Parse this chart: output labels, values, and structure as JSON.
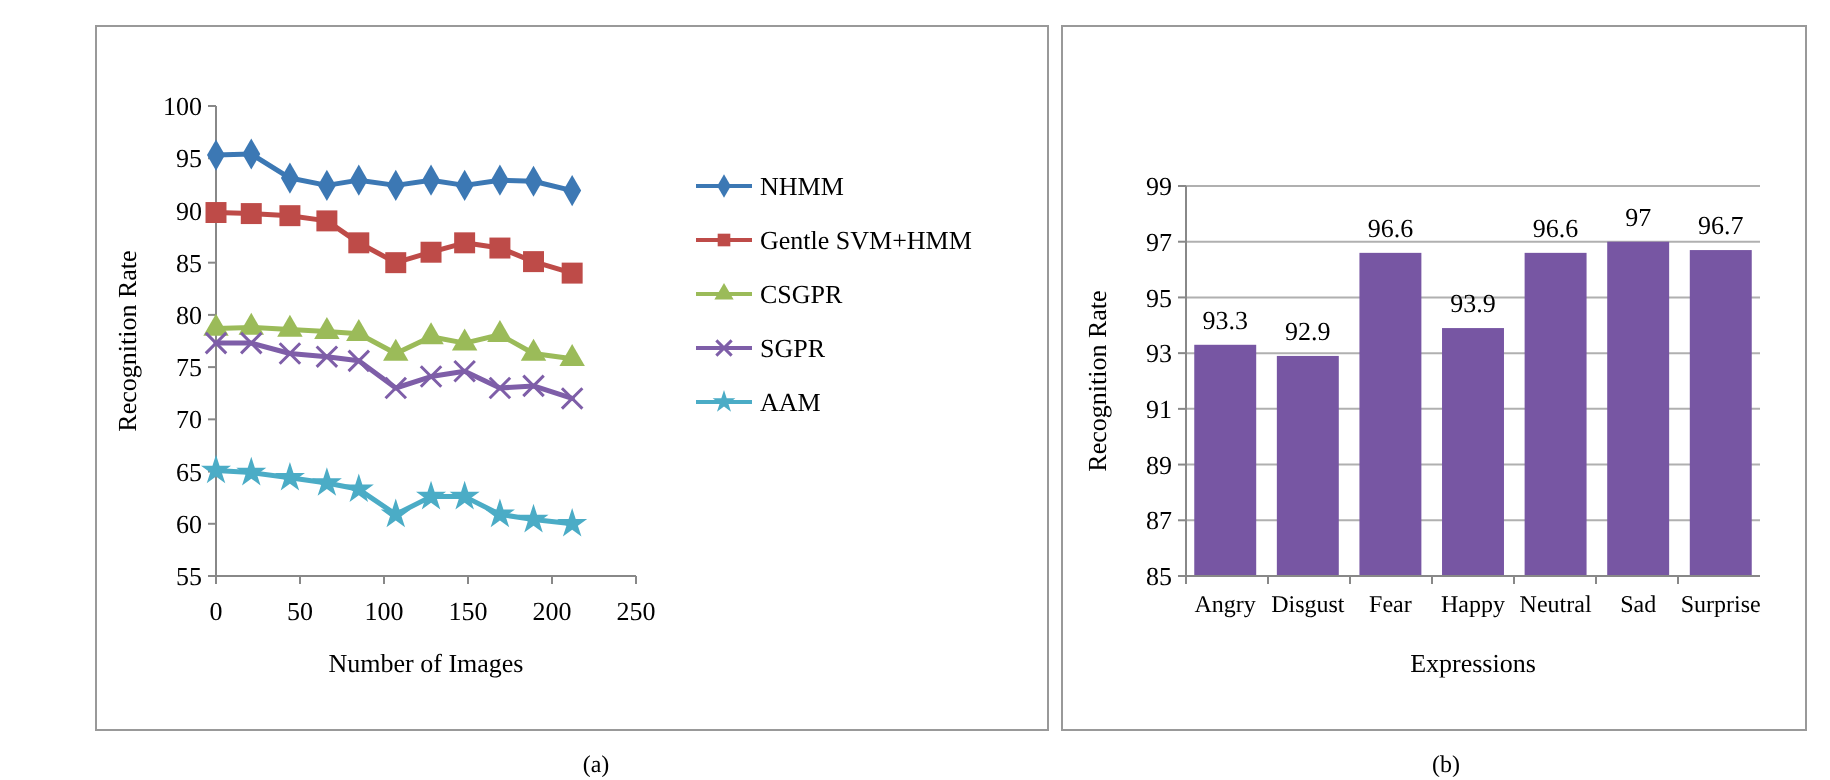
{
  "chart_data": [
    {
      "type": "line",
      "xlabel": "Number of Images",
      "ylabel": "Recognition Rate",
      "xlim": [
        0,
        250
      ],
      "xticks": [
        0,
        50,
        100,
        150,
        200,
        250
      ],
      "ylim": [
        55,
        100
      ],
      "yticks": [
        55,
        60,
        65,
        70,
        75,
        80,
        85,
        90,
        95,
        100
      ],
      "grid": false,
      "legend": "right",
      "line_style": "solid",
      "annotations": [
        "(a)"
      ],
      "x": [
        0,
        21,
        44,
        66,
        85,
        107,
        128,
        148,
        169,
        189,
        212
      ],
      "series": [
        {
          "name": "NHMM",
          "color": "#3c78b4",
          "marker": "diamond",
          "values": [
            95.3,
            95.4,
            93.1,
            92.4,
            92.9,
            92.4,
            92.9,
            92.4,
            92.9,
            92.8,
            91.9
          ]
        },
        {
          "name": "Gentle SVM+HMM",
          "color": "#be4b48",
          "marker": "square",
          "values": [
            89.8,
            89.7,
            89.5,
            89,
            86.9,
            85,
            86,
            86.9,
            86.4,
            85.1,
            84
          ]
        },
        {
          "name": "CSGPR",
          "color": "#9bbb59",
          "marker": "triangle",
          "values": [
            78.7,
            78.8,
            78.6,
            78.4,
            78.2,
            76.3,
            77.9,
            77.3,
            78.1,
            76.3,
            75.8
          ]
        },
        {
          "name": "SGPR",
          "color": "#7e5ea8",
          "marker": "cross",
          "values": [
            77.3,
            77.3,
            76.3,
            76,
            75.6,
            73,
            74.1,
            74.6,
            73,
            73.2,
            72
          ]
        },
        {
          "name": "AAM",
          "color": "#4bacc6",
          "marker": "star",
          "values": [
            65.1,
            64.9,
            64.4,
            63.9,
            63.3,
            60.9,
            62.6,
            62.6,
            60.9,
            60.4,
            60
          ]
        }
      ]
    },
    {
      "type": "bar",
      "xlabel": "Expressions",
      "ylabel": "Recognition Rate",
      "categories": [
        "Angry",
        "Disgust",
        "Fear",
        "Happy",
        "Neutral",
        "Sad",
        "Surprise"
      ],
      "values": [
        93.3,
        92.9,
        96.6,
        93.9,
        96.6,
        97,
        96.7
      ],
      "color": "#7756a3",
      "ylim": [
        85,
        99
      ],
      "yticks": [
        85,
        87,
        89,
        91,
        93,
        95,
        97,
        99
      ],
      "grid": "y",
      "data_labels": true,
      "annotations": [
        "(b)"
      ]
    }
  ]
}
